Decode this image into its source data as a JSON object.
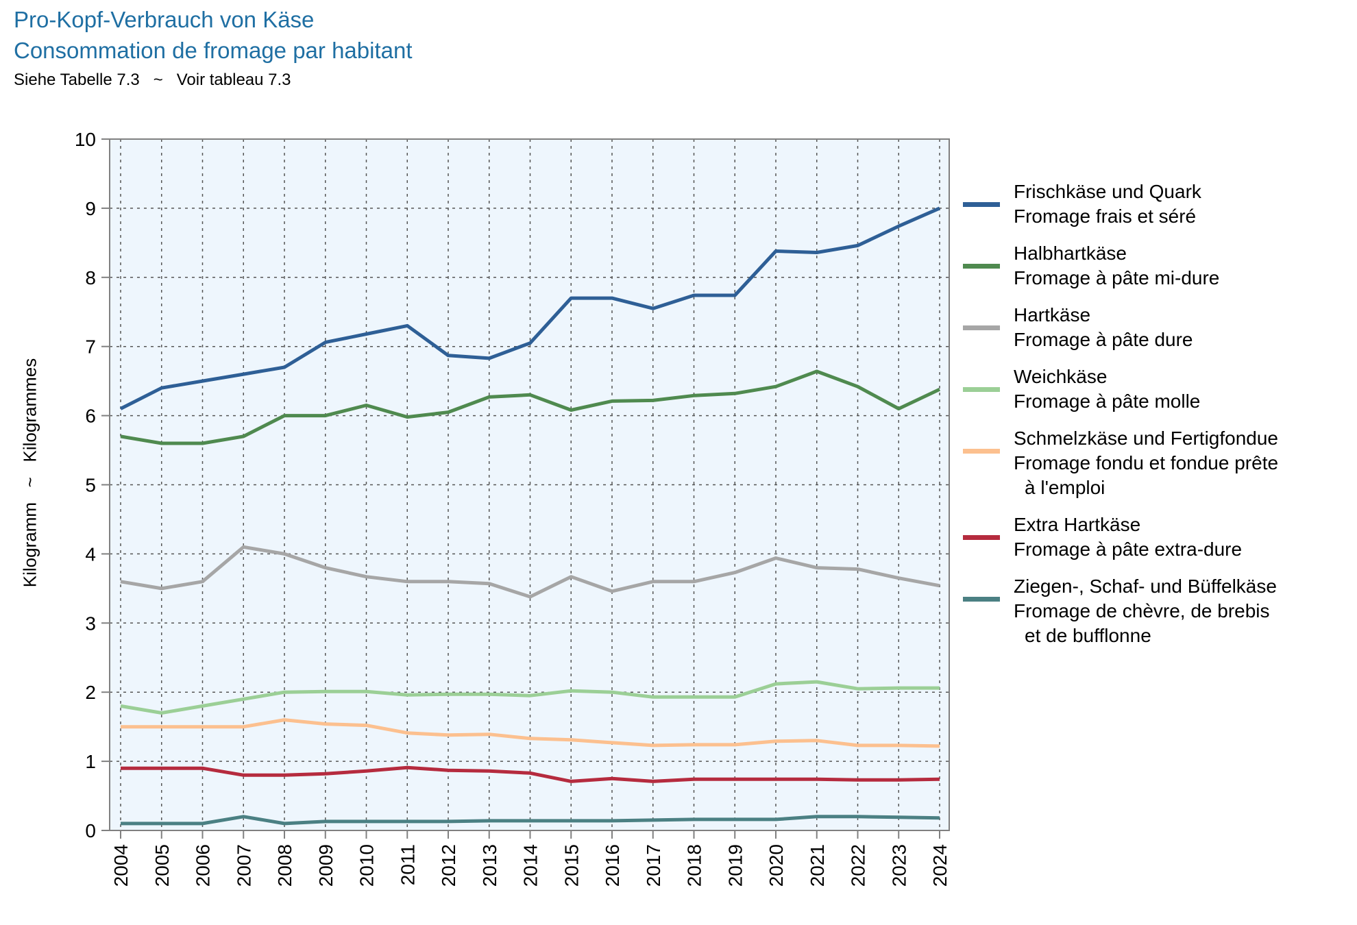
{
  "title_de": "Pro-Kopf-Verbrauch von Käse",
  "title_fr": "Consommation de fromage par habitant",
  "note": "Siehe Tabelle 7.3   ~   Voir tableau 7.3",
  "chart_data": {
    "type": "line",
    "ylabel": "Kilogramm   ~   Kilogrammes",
    "ylim": [
      0,
      10
    ],
    "yticks": [
      "0",
      "1",
      "2",
      "3",
      "4",
      "5",
      "6",
      "7",
      "8",
      "9",
      "10"
    ],
    "x": [
      "2004",
      "2005",
      "2006",
      "2007",
      "2008",
      "2009",
      "2010",
      "2011",
      "2012",
      "2013",
      "2014",
      "2015",
      "2016",
      "2017",
      "2018",
      "2019",
      "2020",
      "2021",
      "2022",
      "2023",
      "2024"
    ],
    "grid": true,
    "legend_position": "right",
    "series": [
      {
        "name": "Frischkäse und Quark",
        "name_fr": "Fromage frais et séré",
        "color": "#2e5f96",
        "values": [
          6.1,
          6.4,
          6.5,
          6.6,
          6.7,
          7.06,
          7.18,
          7.3,
          6.87,
          6.83,
          7.05,
          7.7,
          7.7,
          7.55,
          7.74,
          7.74,
          8.38,
          8.36,
          8.46,
          8.74,
          9.0
        ]
      },
      {
        "name": "Halbhartkäse",
        "name_fr": "Fromage à pâte mi-dure",
        "color": "#4f8a4f",
        "values": [
          5.7,
          5.6,
          5.6,
          5.7,
          6.0,
          6.0,
          6.15,
          5.98,
          6.05,
          6.27,
          6.3,
          6.08,
          6.21,
          6.22,
          6.29,
          6.32,
          6.42,
          6.64,
          6.42,
          6.1,
          6.38
        ]
      },
      {
        "name": "Hartkäse",
        "name_fr": "Fromage à pâte dure",
        "color": "#a6a6a6",
        "values": [
          3.6,
          3.5,
          3.6,
          4.1,
          4.0,
          3.8,
          3.67,
          3.6,
          3.6,
          3.57,
          3.38,
          3.67,
          3.46,
          3.6,
          3.6,
          3.73,
          3.94,
          3.8,
          3.78,
          3.65,
          3.54
        ]
      },
      {
        "name": "Weichkäse",
        "name_fr": "Fromage à pâte molle",
        "color": "#9bcf96",
        "values": [
          1.8,
          1.7,
          1.8,
          1.9,
          2.0,
          2.01,
          2.01,
          1.96,
          1.97,
          1.97,
          1.95,
          2.02,
          2.0,
          1.93,
          1.93,
          1.93,
          2.12,
          2.15,
          2.05,
          2.06,
          2.06
        ]
      },
      {
        "name": "Schmelzkäse und Fertigfondue",
        "name_fr": "Fromage fondu et fondue prête",
        "name_fr2": "à l'emploi",
        "color": "#fcc08f",
        "values": [
          1.5,
          1.5,
          1.5,
          1.5,
          1.6,
          1.54,
          1.52,
          1.41,
          1.38,
          1.39,
          1.33,
          1.31,
          1.27,
          1.23,
          1.24,
          1.24,
          1.29,
          1.3,
          1.23,
          1.23,
          1.22
        ]
      },
      {
        "name": "Extra Hartkäse",
        "name_fr": "Fromage à pâte extra-dure",
        "color": "#b52b3e",
        "values": [
          0.9,
          0.9,
          0.9,
          0.8,
          0.8,
          0.82,
          0.86,
          0.91,
          0.87,
          0.86,
          0.83,
          0.71,
          0.75,
          0.71,
          0.74,
          0.74,
          0.74,
          0.74,
          0.73,
          0.73,
          0.74
        ]
      },
      {
        "name": "Ziegen-, Schaf- und Büffelkäse",
        "name_fr": "Fromage de chèvre, de brebis",
        "name_fr2": "et de bufflonne",
        "color": "#4b8083",
        "values": [
          0.1,
          0.1,
          0.1,
          0.2,
          0.1,
          0.13,
          0.13,
          0.13,
          0.13,
          0.14,
          0.14,
          0.14,
          0.14,
          0.15,
          0.16,
          0.16,
          0.16,
          0.2,
          0.2,
          0.19,
          0.18
        ]
      }
    ]
  }
}
